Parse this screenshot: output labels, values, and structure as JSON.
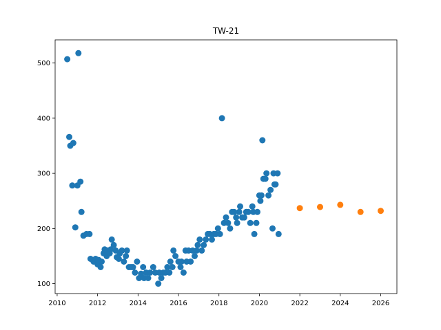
{
  "chart_data": {
    "type": "scatter",
    "title": "TW-21",
    "xlabel": "",
    "ylabel": "",
    "xlim": [
      2009.9,
      2026.8
    ],
    "ylim": [
      82,
      542
    ],
    "x_ticks": [
      2010,
      2012,
      2014,
      2016,
      2018,
      2020,
      2022,
      2024,
      2026
    ],
    "y_ticks": [
      100,
      200,
      300,
      400,
      500
    ],
    "grid": false,
    "legend": "none",
    "series": [
      {
        "color": "#1f77b4",
        "points": [
          [
            2010.5,
            507
          ],
          [
            2010.6,
            366
          ],
          [
            2010.65,
            350
          ],
          [
            2010.8,
            355
          ],
          [
            2010.75,
            278
          ],
          [
            2010.9,
            202
          ],
          [
            2011.0,
            278
          ],
          [
            2011.05,
            518
          ],
          [
            2011.15,
            285
          ],
          [
            2011.2,
            230
          ],
          [
            2011.3,
            187
          ],
          [
            2011.45,
            190
          ],
          [
            2011.6,
            190
          ],
          [
            2011.65,
            145
          ],
          [
            2011.8,
            140
          ],
          [
            2011.9,
            145
          ],
          [
            2012.0,
            135
          ],
          [
            2012.05,
            143
          ],
          [
            2012.15,
            130
          ],
          [
            2012.2,
            140
          ],
          [
            2012.3,
            155
          ],
          [
            2012.35,
            162
          ],
          [
            2012.45,
            150
          ],
          [
            2012.5,
            160
          ],
          [
            2012.6,
            155
          ],
          [
            2012.65,
            162
          ],
          [
            2012.7,
            180
          ],
          [
            2012.8,
            170
          ],
          [
            2012.9,
            160
          ],
          [
            2012.95,
            148
          ],
          [
            2013.05,
            145
          ],
          [
            2013.1,
            155
          ],
          [
            2013.2,
            160
          ],
          [
            2013.3,
            140
          ],
          [
            2013.4,
            150
          ],
          [
            2013.45,
            160
          ],
          [
            2013.55,
            130
          ],
          [
            2013.65,
            130
          ],
          [
            2013.75,
            130
          ],
          [
            2013.85,
            120
          ],
          [
            2013.95,
            140
          ],
          [
            2014.05,
            110
          ],
          [
            2014.15,
            118
          ],
          [
            2014.25,
            130
          ],
          [
            2014.3,
            110
          ],
          [
            2014.4,
            120
          ],
          [
            2014.5,
            110
          ],
          [
            2014.6,
            120
          ],
          [
            2014.75,
            130
          ],
          [
            2014.85,
            120
          ],
          [
            2015.0,
            100
          ],
          [
            2015.05,
            120
          ],
          [
            2015.15,
            110
          ],
          [
            2015.25,
            120
          ],
          [
            2015.35,
            120
          ],
          [
            2015.45,
            130
          ],
          [
            2015.55,
            120
          ],
          [
            2015.6,
            140
          ],
          [
            2015.7,
            130
          ],
          [
            2015.75,
            160
          ],
          [
            2015.85,
            150
          ],
          [
            2016.0,
            140
          ],
          [
            2016.1,
            130
          ],
          [
            2016.15,
            140
          ],
          [
            2016.25,
            120
          ],
          [
            2016.35,
            160
          ],
          [
            2016.4,
            140
          ],
          [
            2016.5,
            160
          ],
          [
            2016.6,
            140
          ],
          [
            2016.7,
            160
          ],
          [
            2016.8,
            150
          ],
          [
            2016.9,
            160
          ],
          [
            2016.95,
            170
          ],
          [
            2017.05,
            180
          ],
          [
            2017.15,
            160
          ],
          [
            2017.25,
            170
          ],
          [
            2017.35,
            180
          ],
          [
            2017.45,
            190
          ],
          [
            2017.55,
            190
          ],
          [
            2017.65,
            180
          ],
          [
            2017.75,
            190
          ],
          [
            2017.85,
            190
          ],
          [
            2017.95,
            200
          ],
          [
            2018.05,
            190
          ],
          [
            2018.15,
            400
          ],
          [
            2018.25,
            210
          ],
          [
            2018.35,
            220
          ],
          [
            2018.45,
            210
          ],
          [
            2018.55,
            200
          ],
          [
            2018.65,
            230
          ],
          [
            2018.75,
            230
          ],
          [
            2018.85,
            220
          ],
          [
            2018.9,
            210
          ],
          [
            2019.0,
            230
          ],
          [
            2019.05,
            240
          ],
          [
            2019.15,
            220
          ],
          [
            2019.25,
            220
          ],
          [
            2019.35,
            230
          ],
          [
            2019.45,
            230
          ],
          [
            2019.55,
            210
          ],
          [
            2019.65,
            240
          ],
          [
            2019.7,
            230
          ],
          [
            2019.75,
            190
          ],
          [
            2019.85,
            210
          ],
          [
            2019.9,
            230
          ],
          [
            2020.0,
            260
          ],
          [
            2020.05,
            250
          ],
          [
            2020.1,
            260
          ],
          [
            2020.15,
            360
          ],
          [
            2020.2,
            290
          ],
          [
            2020.3,
            290
          ],
          [
            2020.35,
            300
          ],
          [
            2020.45,
            260
          ],
          [
            2020.55,
            270
          ],
          [
            2020.65,
            200
          ],
          [
            2020.7,
            300
          ],
          [
            2020.75,
            280
          ],
          [
            2020.8,
            280
          ],
          [
            2020.9,
            300
          ],
          [
            2020.95,
            190
          ]
        ]
      },
      {
        "color": "#ff7f0e",
        "points": [
          [
            2022.0,
            237
          ],
          [
            2023.0,
            239
          ],
          [
            2024.0,
            243
          ],
          [
            2025.0,
            230
          ],
          [
            2026.0,
            232
          ]
        ]
      }
    ]
  }
}
